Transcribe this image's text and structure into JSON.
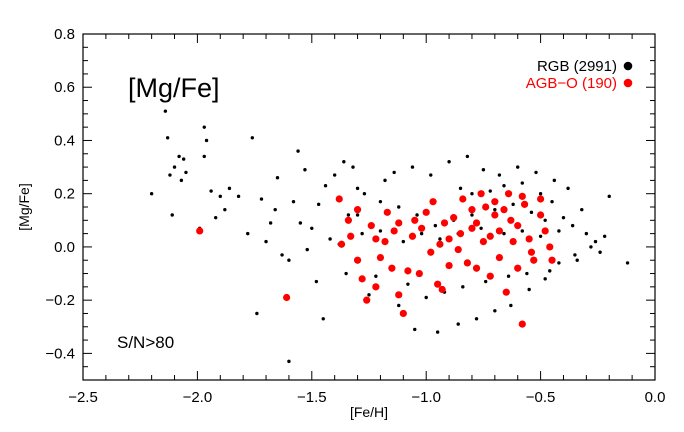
{
  "chart_data": {
    "type": "scatter",
    "title": "",
    "xlabel": "[Fe/H]",
    "ylabel": "[Mg/Fe]",
    "xlim": [
      -2.5,
      0.0
    ],
    "ylim": [
      -0.5,
      0.8
    ],
    "x_ticks": [
      "−2.5",
      "−2.0",
      "−1.5",
      "−1.0",
      "−0.5",
      "0.0"
    ],
    "y_ticks": [
      "−0.4",
      "−0.2",
      "0.0",
      "0.2",
      "0.4",
      "0.6",
      "0.8"
    ],
    "grid": false,
    "legend_position": "top-right",
    "annotations": {
      "element": "[Mg/Fe]",
      "sn_cut": "S/N>80"
    },
    "colors": {
      "rgb": "#000000",
      "agb": "#ff0000",
      "axis": "#000000"
    },
    "series": [
      {
        "name": "RGB",
        "legend_label": "RGB (2991)",
        "color": "#000000",
        "count": 2991,
        "points": [
          [
            -2.14,
            0.51
          ],
          [
            -2.13,
            0.41
          ],
          [
            -2.2,
            0.2
          ],
          [
            -2.1,
            0.3
          ],
          [
            -2.08,
            0.34
          ],
          [
            -2.06,
            0.33
          ],
          [
            -2.12,
            0.27
          ],
          [
            -2.05,
            0.28
          ],
          [
            -2.07,
            0.25
          ],
          [
            -2.11,
            0.12
          ],
          [
            -1.97,
            0.45
          ],
          [
            -1.96,
            0.4
          ],
          [
            -1.9,
            0.19
          ],
          [
            -1.88,
            0.14
          ],
          [
            -1.86,
            0.22
          ],
          [
            -1.82,
            0.19
          ],
          [
            -1.78,
            0.05
          ],
          [
            -1.76,
            0.41
          ],
          [
            -1.7,
            0.02
          ],
          [
            -1.68,
            0.09
          ],
          [
            -1.66,
            0.14
          ],
          [
            -1.63,
            -0.03
          ],
          [
            -1.6,
            -0.05
          ],
          [
            -1.6,
            -0.43
          ],
          [
            -1.56,
            0.36
          ],
          [
            -1.53,
            0.29
          ],
          [
            -1.5,
            0.07
          ],
          [
            -1.48,
            -0.13
          ],
          [
            -1.45,
            -0.27
          ],
          [
            -1.42,
            0.03
          ],
          [
            -1.38,
            0.01
          ],
          [
            -1.35,
            -0.1
          ],
          [
            -1.3,
            0.12
          ],
          [
            -1.27,
            0.2
          ],
          [
            -1.25,
            -0.18
          ],
          [
            -1.2,
            0.06
          ],
          [
            -1.97,
            0.34
          ],
          [
            -1.94,
            0.21
          ],
          [
            -1.99,
            0.07
          ],
          [
            -1.74,
            -0.25
          ],
          [
            -1.92,
            0.11
          ],
          [
            -1.72,
            0.18
          ],
          [
            -1.65,
            0.26
          ],
          [
            -1.58,
            0.17
          ],
          [
            -1.55,
            0.09
          ],
          [
            -1.52,
            -0.01
          ],
          [
            -1.47,
            0.16
          ],
          [
            -1.44,
            0.23
          ],
          [
            -1.4,
            0.27
          ],
          [
            -1.36,
            0.32
          ],
          [
            -1.32,
            0.3
          ],
          [
            -1.28,
            0.05
          ],
          [
            -1.22,
            -0.11
          ],
          [
            -1.18,
            0.25
          ],
          [
            -1.12,
            -0.22
          ],
          [
            -1.05,
            -0.31
          ],
          [
            -0.95,
            -0.32
          ],
          [
            -0.86,
            -0.29
          ],
          [
            -0.78,
            -0.27
          ],
          [
            -0.7,
            -0.24
          ],
          [
            -0.63,
            -0.22
          ],
          [
            -0.55,
            -0.16
          ],
          [
            -0.48,
            -0.12
          ],
          [
            -0.42,
            -0.06
          ],
          [
            -0.35,
            -0.03
          ],
          [
            -0.28,
            0.0
          ],
          [
            -0.22,
            0.04
          ],
          [
            -0.2,
            0.19
          ],
          [
            -0.12,
            -0.06
          ],
          [
            -0.32,
            0.14
          ],
          [
            -0.38,
            0.22
          ],
          [
            -0.44,
            0.25
          ],
          [
            -0.52,
            0.28
          ],
          [
            -0.6,
            0.3
          ],
          [
            -0.68,
            0.27
          ],
          [
            -0.75,
            0.29
          ],
          [
            -0.82,
            0.34
          ],
          [
            -0.9,
            0.32
          ],
          [
            -0.98,
            0.27
          ],
          [
            -1.06,
            0.3
          ],
          [
            -1.14,
            0.28
          ],
          [
            -0.85,
            0.22
          ],
          [
            -0.8,
            0.2
          ],
          [
            -0.72,
            0.21
          ],
          [
            -0.66,
            0.23
          ],
          [
            -0.58,
            0.24
          ],
          [
            -0.5,
            0.2
          ],
          [
            -0.45,
            0.17
          ],
          [
            -0.4,
            0.11
          ],
          [
            -0.36,
            0.08
          ],
          [
            -0.3,
            0.05
          ],
          [
            -0.26,
            0.02
          ],
          [
            -0.24,
            -0.02
          ],
          [
            -0.34,
            -0.05
          ],
          [
            -0.46,
            -0.09
          ],
          [
            -0.56,
            -0.1
          ],
          [
            -0.64,
            -0.11
          ],
          [
            -0.74,
            -0.13
          ],
          [
            -0.84,
            -0.15
          ],
          [
            -0.92,
            -0.17
          ],
          [
            -1.0,
            -0.19
          ],
          [
            -1.08,
            -0.14
          ],
          [
            -1.15,
            -0.08
          ],
          [
            -1.1,
            0.02
          ],
          [
            -1.02,
            0.05
          ],
          [
            -0.96,
            0.08
          ],
          [
            -0.88,
            0.1
          ],
          [
            -0.8,
            0.12
          ],
          [
            -0.7,
            0.14
          ],
          [
            -0.62,
            0.16
          ],
          [
            -0.54,
            0.13
          ],
          [
            -0.48,
            0.1
          ],
          [
            -0.42,
            0.06
          ],
          [
            -0.5,
            0.04
          ],
          [
            -0.58,
            0.06
          ],
          [
            -0.66,
            0.05
          ],
          [
            -0.76,
            0.07
          ],
          [
            -0.86,
            0.05
          ],
          [
            -0.94,
            0.03
          ],
          [
            -1.04,
            0.12
          ],
          [
            -1.12,
            0.15
          ],
          [
            -1.2,
            0.17
          ],
          [
            -1.3,
            0.22
          ],
          [
            -1.34,
            0.12
          ]
        ]
      },
      {
        "name": "AGB-O",
        "legend_label": "AGB−O (190)",
        "color": "#ff0000",
        "count": 190,
        "points": [
          [
            -1.99,
            0.06
          ],
          [
            -1.61,
            -0.19
          ],
          [
            -1.38,
            0.18
          ],
          [
            -1.37,
            0.01
          ],
          [
            -1.33,
            0.04
          ],
          [
            -1.3,
            -0.05
          ],
          [
            -1.28,
            -0.12
          ],
          [
            -1.26,
            -0.2
          ],
          [
            -1.22,
            -0.15
          ],
          [
            -1.2,
            -0.04
          ],
          [
            -1.18,
            0.02
          ],
          [
            -1.15,
            -0.08
          ],
          [
            -1.12,
            -0.18
          ],
          [
            -1.1,
            -0.25
          ],
          [
            -1.08,
            -0.09
          ],
          [
            -1.05,
            0.1
          ],
          [
            -1.02,
            0.07
          ],
          [
            -0.98,
            -0.02
          ],
          [
            -0.95,
            -0.14
          ],
          [
            -0.93,
            -0.16
          ],
          [
            -0.9,
            0.03
          ],
          [
            -0.88,
            0.11
          ],
          [
            -0.85,
            0.05
          ],
          [
            -0.82,
            -0.06
          ],
          [
            -0.8,
            0.14
          ],
          [
            -0.78,
            0.09
          ],
          [
            -0.75,
            0.02
          ],
          [
            -0.72,
            -0.11
          ],
          [
            -0.7,
            0.17
          ],
          [
            -0.68,
            0.06
          ],
          [
            -0.65,
            -0.17
          ],
          [
            -0.63,
            0.1
          ],
          [
            -0.6,
            0.08
          ],
          [
            -0.58,
            -0.29
          ],
          [
            -0.57,
            0.16
          ],
          [
            -0.55,
            0.03
          ],
          [
            -0.53,
            -0.05
          ],
          [
            -0.5,
            0.12
          ],
          [
            -0.48,
            0.06
          ],
          [
            -0.46,
            0.0
          ],
          [
            -0.45,
            -0.05
          ],
          [
            -0.97,
            0.17
          ],
          [
            -1.0,
            0.13
          ],
          [
            -0.84,
            0.18
          ],
          [
            -0.76,
            0.2
          ],
          [
            -0.66,
            0.14
          ],
          [
            -0.62,
            0.02
          ],
          [
            -0.72,
            0.04
          ],
          [
            -0.86,
            -0.01
          ],
          [
            -0.94,
            0.01
          ],
          [
            -1.06,
            0.04
          ],
          [
            -1.14,
            0.06
          ],
          [
            -1.24,
            0.08
          ],
          [
            -1.34,
            0.1
          ],
          [
            -1.3,
            0.14
          ],
          [
            -1.17,
            0.13
          ],
          [
            -0.54,
            -0.02
          ],
          [
            -0.6,
            -0.08
          ],
          [
            -0.68,
            -0.04
          ],
          [
            -0.78,
            -0.08
          ],
          [
            -0.9,
            -0.07
          ],
          [
            -1.03,
            -0.1
          ],
          [
            -0.5,
            0.18
          ],
          [
            -0.58,
            0.19
          ],
          [
            -0.7,
            0.12
          ],
          [
            -0.8,
            0.07
          ],
          [
            -0.92,
            0.09
          ],
          [
            -1.12,
            0.09
          ],
          [
            -1.22,
            0.03
          ],
          [
            -0.64,
            0.2
          ],
          [
            -0.74,
            0.15
          ]
        ]
      }
    ]
  }
}
